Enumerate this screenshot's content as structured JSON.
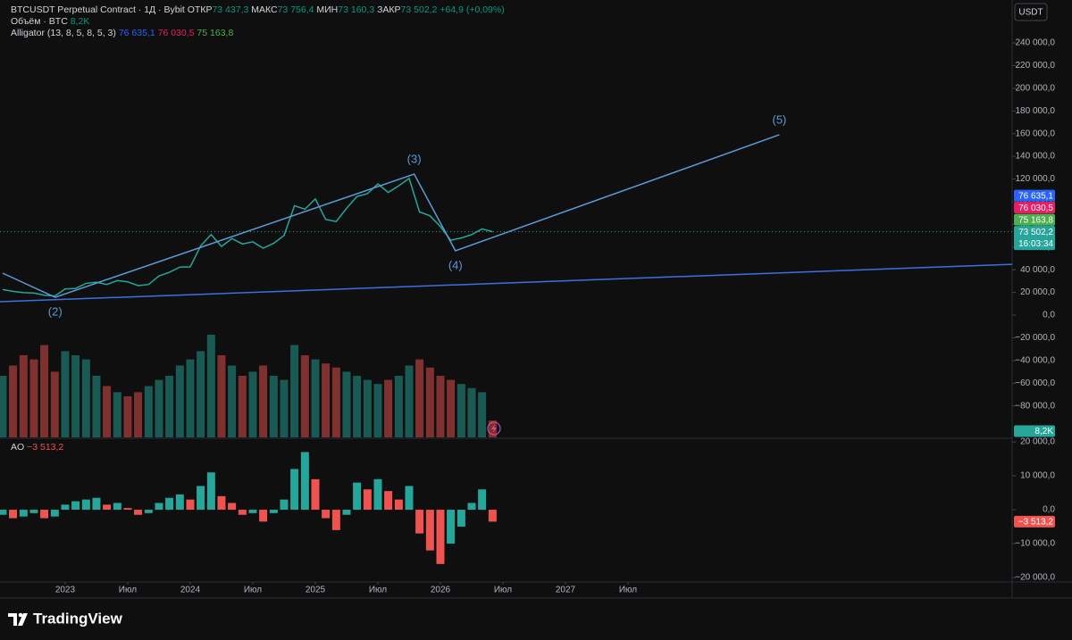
{
  "header": {
    "symbol": "BTCUSDT Perpetual Contract · 1Д · Bybit",
    "ohlc": [
      {
        "key": "ОТКР",
        "value": "73 437,3"
      },
      {
        "key": "МАКС",
        "value": "73 756,4"
      },
      {
        "key": "МИН",
        "value": "73 160,3"
      },
      {
        "key": "ЗАКР",
        "value": "73 502,2"
      }
    ],
    "change": "+64,9 (+0,09%)",
    "volume_title": "Объём · BTC",
    "indicator": "Alligator (13, 8, 5, 8, 5, 3)",
    "ao_title": "AO",
    "currency": "USDT",
    "countdown": "16:03:34",
    "logo": "TradingView"
  },
  "chart_data": {
    "type": "line",
    "x": [
      2022.5,
      2022.583,
      2022.667,
      2022.75,
      2022.833,
      2022.917,
      2023,
      2023.083,
      2023.167,
      2023.25,
      2023.333,
      2023.417,
      2023.5,
      2023.583,
      2023.667,
      2023.75,
      2023.833,
      2023.917,
      2024,
      2024.083,
      2024.167,
      2024.25,
      2024.333,
      2024.417,
      2024.5,
      2024.583,
      2024.667,
      2024.75,
      2024.833,
      2024.917,
      2025,
      2025.083,
      2025.167,
      2025.25,
      2025.333,
      2025.417,
      2025.5,
      2025.583,
      2025.667,
      2025.75,
      2025.833,
      2025.917,
      2026,
      2026.083,
      2026.167,
      2026.25,
      2026.333,
      2026.417
    ],
    "series": [
      {
        "name": "BTCUSDT",
        "color": "#26a69a",
        "values": [
          22500,
          21000,
          19800,
          19500,
          17500,
          16800,
          23000,
          23500,
          28000,
          29000,
          27000,
          30500,
          29300,
          26000,
          27000,
          34500,
          37700,
          42300,
          42500,
          61000,
          71000,
          60500,
          67500,
          62700,
          64600,
          59000,
          63300,
          70200,
          96400,
          93400,
          102400,
          84300,
          82500,
          94200,
          104600,
          107100,
          115700,
          108200,
          114000,
          120500,
          91000,
          87500,
          78000,
          66000,
          68000,
          71000,
          76000,
          73502.2
        ]
      }
    ],
    "xlim": [
      2022.479,
      2030.571
    ],
    "xticks": [
      2023,
      {
        "value": 2023.5,
        "label": "Июл"
      },
      2024,
      {
        "value": 2024.5,
        "label": "Июл"
      },
      2025,
      {
        "value": 2025.5,
        "label": "Июл"
      },
      2026,
      {
        "value": 2026.5,
        "label": "Июл"
      },
      2027,
      {
        "value": 2027.5,
        "label": "Июл"
      }
    ],
    "ylim": [
      -107800,
      277800
    ],
    "yticks": [
      {
        "value": 240000,
        "label": "240 000,0"
      },
      {
        "value": 220000,
        "label": "220 000,0"
      },
      {
        "value": 200000,
        "label": "200 000,0"
      },
      {
        "value": 180000,
        "label": "180 000,0"
      },
      {
        "value": 160000,
        "label": "160 000,0"
      },
      {
        "value": 140000,
        "label": "140 000,0"
      },
      {
        "value": 120000,
        "label": "120 000,0"
      },
      {
        "value": 100000,
        "label": "100 000,0"
      },
      {
        "value": 80000,
        "label": "80 000,0"
      },
      {
        "value": 60000,
        "label": "60 000,0"
      },
      {
        "value": 40000,
        "label": "40 000,0"
      },
      {
        "value": 20000,
        "label": "20 000,0"
      },
      {
        "value": 0,
        "label": "0,0"
      },
      {
        "value": -20000,
        "label": "−20 000,0"
      },
      {
        "value": -40000,
        "label": "−40 000,0"
      },
      {
        "value": -60000,
        "label": "−60 000,0"
      },
      {
        "value": -80000,
        "label": "−80 000,0"
      }
    ],
    "grid": false,
    "last": {
      "value": 73502.2,
      "label": "73 502,2"
    },
    "alligator": [
      {
        "value": 76635.1,
        "label": "76 635,1",
        "color": "#2962ff"
      },
      {
        "value": 76030.5,
        "label": "76 030,5",
        "color": "#e91e63"
      },
      {
        "value": 75163.8,
        "label": "75 163,8",
        "color": "#4caf50"
      }
    ],
    "volume": {
      "up_color": "#26a69a",
      "down_color": "#ef5350",
      "values": [
        30,
        35,
        40,
        38,
        45,
        32,
        42,
        40,
        38,
        30,
        25,
        22,
        20,
        22,
        25,
        28,
        30,
        35,
        38,
        42,
        50,
        40,
        35,
        30,
        32,
        35,
        30,
        28,
        45,
        40,
        38,
        36,
        34,
        32,
        30,
        28,
        26,
        28,
        30,
        35,
        38,
        34,
        30,
        28,
        26,
        24,
        22,
        8.2
      ],
      "last": {
        "value": 8.2,
        "label": "8,2K"
      }
    },
    "ao": {
      "ylim": [
        -21300,
        20800
      ],
      "yticks": [
        {
          "value": 20000,
          "label": "20 000,0"
        },
        {
          "value": 10000,
          "label": "10 000,0"
        },
        {
          "value": 0,
          "label": "0,0"
        },
        {
          "value": -10000,
          "label": "−10 000,0"
        },
        {
          "value": -20000,
          "label": "−20 000,0"
        }
      ],
      "up_color": "#26a69a",
      "down_color": "#ef5350",
      "values": [
        -1500,
        -2500,
        -2000,
        -1000,
        -2500,
        -2000,
        1500,
        2500,
        3000,
        3500,
        1500,
        2000,
        500,
        -1500,
        -1000,
        2000,
        3500,
        4500,
        3000,
        7000,
        11000,
        4000,
        2000,
        -1500,
        -1000,
        -3500,
        -1000,
        3000,
        12000,
        17000,
        9000,
        -2500,
        -6000,
        -1500,
        8000,
        6000,
        9000,
        5500,
        3000,
        7000,
        -7000,
        -12000,
        -16000,
        -10000,
        -5000,
        2000,
        6000,
        -3513.2
      ],
      "last": {
        "value": -3513.2,
        "label": "−3 513,2"
      }
    },
    "waves": {
      "color": "#5b9bd5",
      "points": [
        {
          "label": null,
          "x": 2022.5,
          "y": 37000
        },
        {
          "label": "(2)",
          "x": 2022.92,
          "y": 15700
        },
        {
          "label": "(3)",
          "x": 2025.79,
          "y": 124300
        },
        {
          "label": "(4)",
          "x": 2026.12,
          "y": 56700
        },
        {
          "label": "(5)",
          "x": 2028.71,
          "y": 159000
        }
      ]
    },
    "trendline": {
      "color": "#3d6fe0",
      "x": [
        2022.479,
        2030.571
      ],
      "y": [
        11800,
        44800
      ]
    }
  }
}
